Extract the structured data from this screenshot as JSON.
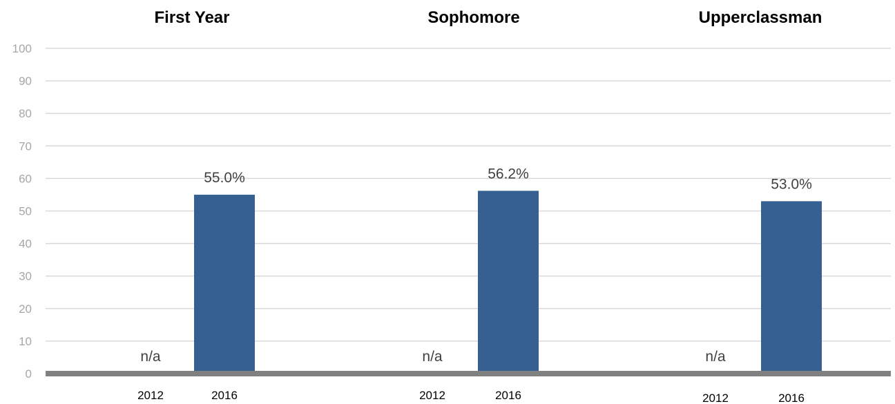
{
  "chart_data": {
    "type": "bar",
    "ylim": [
      0,
      100
    ],
    "yticks": [
      0,
      10,
      20,
      30,
      40,
      50,
      60,
      70,
      80,
      90,
      100
    ],
    "grid": true,
    "colors": {
      "bar": "#366092",
      "grid": "#d9d9d9",
      "baseline": "#808080"
    },
    "panels": [
      {
        "title": "First Year",
        "categories": [
          "2012",
          "2016"
        ],
        "values": [
          null,
          55.0
        ],
        "labels": [
          "n/a",
          "55.0%"
        ]
      },
      {
        "title": "Sophomore",
        "categories": [
          "2012",
          "2016"
        ],
        "values": [
          null,
          56.2
        ],
        "labels": [
          "n/a",
          "56.2%"
        ]
      },
      {
        "title": "Upperclassman",
        "categories": [
          "2012",
          "2016"
        ],
        "values": [
          null,
          53.0
        ],
        "labels": [
          "n/a",
          "53.0%"
        ]
      }
    ]
  }
}
